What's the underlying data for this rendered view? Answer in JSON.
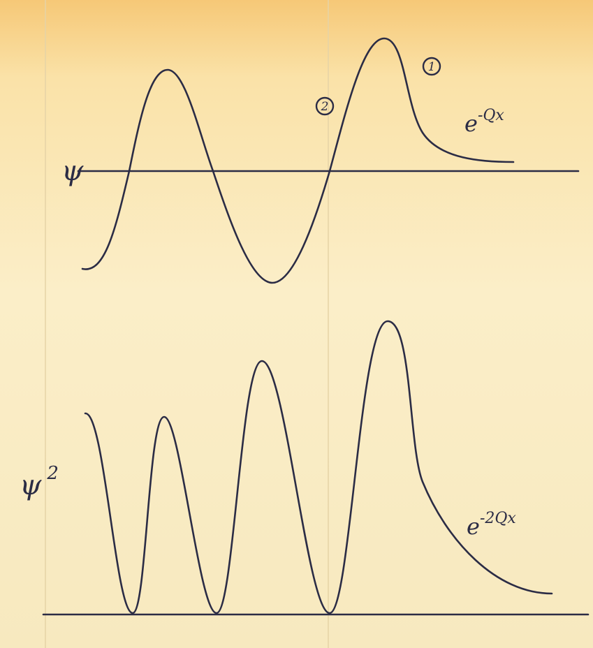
{
  "top_plot": {
    "axis_label": "ψ",
    "markers": [
      {
        "label": "1"
      },
      {
        "label": "2"
      }
    ],
    "annotation": {
      "base": "e",
      "exponent": "-Qx"
    }
  },
  "bottom_plot": {
    "axis_label": {
      "base": "ψ",
      "exponent": "2"
    },
    "annotation": {
      "base": "e",
      "exponent": "-2Qx"
    }
  }
}
